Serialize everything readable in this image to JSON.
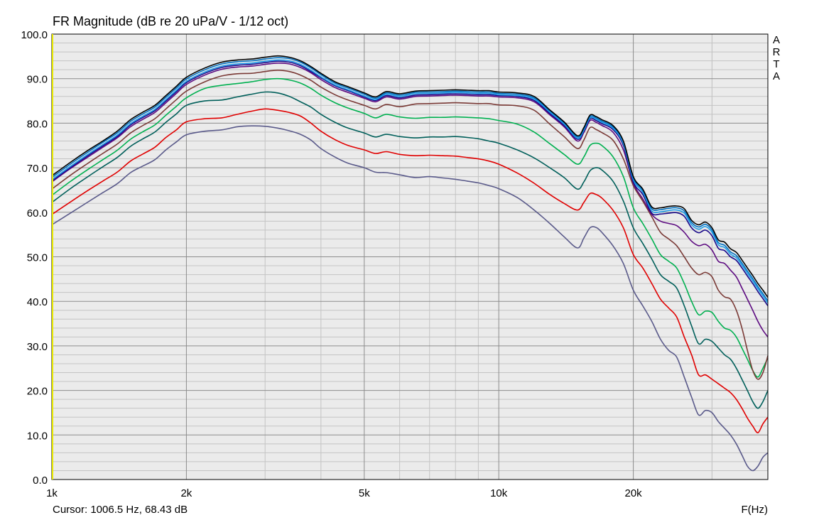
{
  "chart_data": {
    "type": "line",
    "title": "FR Magnitude (dB re 20 uPa/V - 1/12 oct)",
    "xlabel": "F(Hz)",
    "ylabel": "",
    "xscale": "log",
    "xlim": [
      1000,
      40000
    ],
    "ylim": [
      0,
      100
    ],
    "x_ticks": [
      {
        "value": 1000,
        "label": "1k"
      },
      {
        "value": 2000,
        "label": "2k"
      },
      {
        "value": 5000,
        "label": "5k"
      },
      {
        "value": 10000,
        "label": "10k"
      },
      {
        "value": 20000,
        "label": "20k"
      }
    ],
    "y_ticks": [
      {
        "value": 0,
        "label": "0.0"
      },
      {
        "value": 10,
        "label": "10.0"
      },
      {
        "value": 20,
        "label": "20.0"
      },
      {
        "value": 30,
        "label": "30.0"
      },
      {
        "value": 40,
        "label": "40.0"
      },
      {
        "value": 50,
        "label": "50.0"
      },
      {
        "value": 60,
        "label": "60.0"
      },
      {
        "value": 70,
        "label": "70.0"
      },
      {
        "value": 80,
        "label": "80.0"
      },
      {
        "value": 90,
        "label": "90.0"
      },
      {
        "value": 100,
        "label": "100.0"
      }
    ],
    "grid": true,
    "minor_grid": true,
    "legend": "none",
    "background": "#ebebeb",
    "x": [
      1000,
      1100,
      1200,
      1300,
      1400,
      1500,
      1600,
      1700,
      1800,
      1900,
      2000,
      2200,
      2400,
      2600,
      2800,
      3000,
      3200,
      3400,
      3600,
      3800,
      4000,
      4300,
      4600,
      5000,
      5300,
      5600,
      6000,
      6500,
      7000,
      7500,
      8000,
      8500,
      9000,
      9500,
      10000,
      11000,
      12000,
      13000,
      14000,
      15000,
      15500,
      16000,
      16500,
      17000,
      18000,
      19000,
      20000,
      21000,
      22000,
      23000,
      24000,
      25000,
      26000,
      27000,
      28000,
      29000,
      30000,
      31000,
      32000,
      33000,
      34000,
      35000,
      36000,
      37000,
      38000,
      39000,
      40000
    ],
    "series": [
      {
        "color": "#000000",
        "values": [
          68.2,
          71.2,
          73.8,
          76.0,
          78.2,
          80.8,
          82.5,
          84.0,
          86.2,
          88.3,
          90.3,
          92.4,
          93.7,
          94.2,
          94.4,
          94.8,
          95.1,
          94.8,
          94.0,
          92.7,
          91.2,
          89.3,
          88.2,
          86.8,
          85.9,
          87.1,
          86.6,
          87.2,
          87.3,
          87.4,
          87.5,
          87.4,
          87.3,
          87.3,
          87.0,
          86.8,
          86.0,
          83.0,
          80.3,
          77.2,
          79.0,
          81.8,
          81.5,
          80.8,
          79.5,
          76.0,
          68.0,
          65.2,
          61.2,
          61.0,
          61.3,
          61.4,
          60.8,
          58.2,
          57.2,
          57.8,
          56.5,
          53.8,
          53.3,
          51.8,
          51.0,
          49.3,
          47.5,
          45.8,
          44.0,
          42.5,
          40.9
        ]
      },
      {
        "color": "#0070c0",
        "values": [
          67.8,
          70.8,
          73.4,
          75.7,
          77.8,
          80.4,
          82.1,
          83.6,
          85.8,
          87.9,
          89.9,
          92.0,
          93.3,
          93.8,
          94.0,
          94.4,
          94.7,
          94.5,
          93.7,
          92.4,
          90.9,
          89.0,
          87.9,
          86.5,
          85.6,
          86.8,
          86.3,
          86.9,
          87.0,
          87.1,
          87.2,
          87.1,
          87.0,
          87.0,
          86.7,
          86.5,
          85.7,
          82.8,
          80.1,
          76.9,
          78.7,
          81.5,
          81.2,
          80.5,
          79.2,
          75.8,
          67.7,
          64.9,
          60.8,
          60.6,
          60.9,
          61.0,
          60.3,
          57.7,
          56.7,
          57.3,
          56.0,
          53.2,
          52.6,
          51.1,
          50.3,
          48.6,
          46.8,
          45.1,
          43.3,
          41.7,
          40.1
        ]
      },
      {
        "color": "#1f9ee8",
        "values": [
          67.3,
          70.3,
          72.9,
          75.2,
          77.3,
          79.9,
          81.6,
          83.1,
          85.3,
          87.4,
          89.4,
          91.5,
          92.8,
          93.3,
          93.5,
          93.9,
          94.2,
          94.0,
          93.2,
          91.9,
          90.4,
          88.6,
          87.5,
          86.1,
          85.3,
          86.5,
          86.0,
          86.6,
          86.7,
          86.8,
          86.9,
          86.8,
          86.7,
          86.7,
          86.4,
          86.2,
          85.4,
          82.5,
          79.8,
          76.6,
          78.4,
          81.2,
          80.9,
          80.2,
          78.9,
          75.4,
          67.3,
          64.5,
          60.3,
          60.1,
          60.4,
          60.5,
          59.8,
          57.2,
          56.2,
          56.8,
          55.5,
          52.7,
          52.1,
          50.6,
          49.8,
          48.1,
          46.3,
          44.6,
          42.8,
          41.2,
          39.6
        ]
      },
      {
        "color": "#1a0a8a",
        "values": [
          67.0,
          70.0,
          72.6,
          74.9,
          77.0,
          79.6,
          81.3,
          82.8,
          85.0,
          87.1,
          89.1,
          91.2,
          92.5,
          93.0,
          93.2,
          93.6,
          93.9,
          93.7,
          92.9,
          91.6,
          90.2,
          88.4,
          87.3,
          85.9,
          85.1,
          86.2,
          85.7,
          86.3,
          86.4,
          86.5,
          86.6,
          86.5,
          86.4,
          86.4,
          86.2,
          86.0,
          85.1,
          82.2,
          79.5,
          76.4,
          78.2,
          81.0,
          80.6,
          79.9,
          78.6,
          75.0,
          66.8,
          64.0,
          59.8,
          59.6,
          59.8,
          59.9,
          59.1,
          56.5,
          55.4,
          56.0,
          54.7,
          51.9,
          51.4,
          50.0,
          49.2,
          47.5,
          45.7,
          44.0,
          42.2,
          40.6,
          39.0
        ]
      },
      {
        "color": "#5c0a80",
        "values": [
          66.8,
          69.8,
          72.3,
          74.6,
          76.7,
          79.2,
          80.9,
          82.4,
          84.6,
          86.7,
          88.7,
          90.8,
          92.1,
          92.6,
          92.8,
          93.2,
          93.5,
          93.3,
          92.5,
          91.3,
          89.8,
          88.0,
          86.9,
          85.6,
          84.8,
          85.9,
          85.4,
          86.0,
          86.1,
          86.2,
          86.3,
          86.2,
          86.1,
          86.1,
          85.9,
          85.7,
          84.8,
          81.9,
          79.2,
          76.0,
          77.9,
          80.6,
          80.2,
          79.5,
          78.0,
          74.0,
          66.5,
          63.0,
          59.5,
          58.0,
          57.5,
          57.0,
          55.5,
          53.5,
          52.5,
          52.8,
          51.5,
          49.0,
          48.5,
          47.0,
          45.5,
          43.0,
          40.5,
          38.0,
          35.5,
          33.5,
          32.0
        ]
      },
      {
        "color": "#7a3a36",
        "values": [
          65.2,
          68.3,
          70.9,
          73.2,
          75.3,
          77.8,
          79.5,
          81.0,
          83.2,
          85.3,
          87.2,
          89.3,
          90.6,
          91.1,
          91.2,
          91.6,
          91.9,
          91.6,
          90.8,
          89.6,
          88.1,
          86.4,
          85.2,
          84.0,
          83.2,
          84.2,
          83.7,
          84.3,
          84.4,
          84.5,
          84.6,
          84.5,
          84.4,
          84.4,
          84.1,
          83.9,
          82.9,
          79.8,
          77.0,
          74.3,
          76.2,
          79.0,
          78.6,
          77.9,
          76.2,
          72.0,
          66.0,
          62.5,
          59.0,
          55.5,
          54.0,
          52.5,
          50.0,
          47.5,
          46.0,
          46.5,
          45.5,
          42.5,
          41.0,
          40.5,
          38.0,
          34.0,
          29.0,
          24.5,
          22.5,
          24.0,
          27.8
        ]
      },
      {
        "color": "#00b050",
        "values": [
          63.8,
          66.9,
          69.5,
          71.8,
          73.9,
          76.4,
          78.1,
          79.6,
          81.8,
          83.8,
          85.7,
          87.8,
          88.5,
          88.9,
          89.3,
          89.8,
          90.0,
          89.7,
          89.0,
          87.8,
          86.3,
          84.6,
          83.4,
          82.2,
          81.2,
          82.0,
          81.4,
          81.1,
          81.3,
          81.3,
          81.4,
          81.3,
          81.2,
          81.0,
          80.6,
          79.8,
          78.0,
          75.4,
          73.0,
          70.8,
          72.4,
          75.0,
          75.5,
          75.0,
          72.5,
          68.0,
          61.0,
          57.5,
          54.0,
          50.5,
          49.0,
          47.5,
          44.0,
          40.0,
          37.0,
          37.8,
          37.5,
          35.5,
          34.0,
          33.5,
          32.0,
          29.5,
          27.0,
          24.5,
          23.0,
          25.0,
          27.3
        ]
      },
      {
        "color": "#005f5a",
        "values": [
          62.2,
          65.3,
          67.9,
          70.2,
          72.3,
          74.8,
          76.5,
          78.0,
          80.2,
          82.1,
          84.0,
          85.0,
          85.2,
          85.9,
          86.5,
          87.0,
          86.8,
          86.0,
          84.8,
          83.6,
          82.0,
          80.2,
          78.9,
          77.8,
          76.9,
          77.5,
          77.0,
          76.7,
          76.9,
          76.9,
          77.0,
          76.8,
          76.5,
          76.0,
          75.5,
          74.0,
          72.2,
          70.0,
          67.8,
          65.2,
          66.8,
          69.3,
          70.0,
          69.5,
          67.0,
          62.5,
          56.5,
          53.0,
          49.5,
          46.0,
          44.5,
          43.0,
          39.0,
          34.5,
          30.5,
          31.5,
          31.0,
          29.5,
          28.0,
          27.0,
          25.0,
          22.5,
          20.0,
          17.5,
          16.0,
          17.5,
          20.0
        ]
      },
      {
        "color": "#e00000",
        "values": [
          59.5,
          62.3,
          64.8,
          67.0,
          69.0,
          71.5,
          73.1,
          74.6,
          76.8,
          78.5,
          80.3,
          81.0,
          81.2,
          82.0,
          82.7,
          83.2,
          82.9,
          82.4,
          81.6,
          80.0,
          78.2,
          76.3,
          75.0,
          74.0,
          73.2,
          73.6,
          73.0,
          72.7,
          72.8,
          72.7,
          72.6,
          72.3,
          72.0,
          71.5,
          70.8,
          68.8,
          66.5,
          64.0,
          62.0,
          60.5,
          62.2,
          64.2,
          64.0,
          63.2,
          60.5,
          56.5,
          50.5,
          47.5,
          44.0,
          40.5,
          38.5,
          36.5,
          32.0,
          28.0,
          23.5,
          23.5,
          22.5,
          21.5,
          20.5,
          19.5,
          18.0,
          16.0,
          13.8,
          12.0,
          10.5,
          12.5,
          14.0
        ]
      },
      {
        "color": "#5a5a8a",
        "values": [
          57.2,
          59.8,
          62.2,
          64.4,
          66.4,
          68.9,
          70.4,
          71.8,
          74.0,
          75.8,
          77.4,
          78.2,
          78.5,
          79.2,
          79.4,
          79.3,
          78.9,
          78.3,
          77.5,
          76.2,
          74.3,
          72.4,
          71.0,
          70.0,
          69.0,
          68.9,
          68.4,
          67.8,
          68.0,
          67.7,
          67.4,
          67.0,
          66.6,
          66.0,
          65.3,
          63.3,
          60.5,
          57.5,
          54.5,
          52.0,
          54.2,
          56.5,
          56.6,
          55.5,
          52.5,
          48.5,
          42.5,
          39.0,
          35.5,
          31.5,
          29.0,
          27.5,
          23.0,
          18.5,
          14.5,
          15.5,
          15.0,
          13.0,
          11.5,
          10.0,
          8.0,
          5.5,
          3.0,
          2.0,
          3.0,
          5.0,
          6.0
        ]
      }
    ]
  },
  "header": {
    "title": "FR Magnitude (dB re 20 uPa/V - 1/12 oct)",
    "brand": "ARTA"
  },
  "footer": {
    "cursor": "Cursor: 1006.5 Hz, 68.43 dB",
    "x_axis_label": "F(Hz)"
  }
}
